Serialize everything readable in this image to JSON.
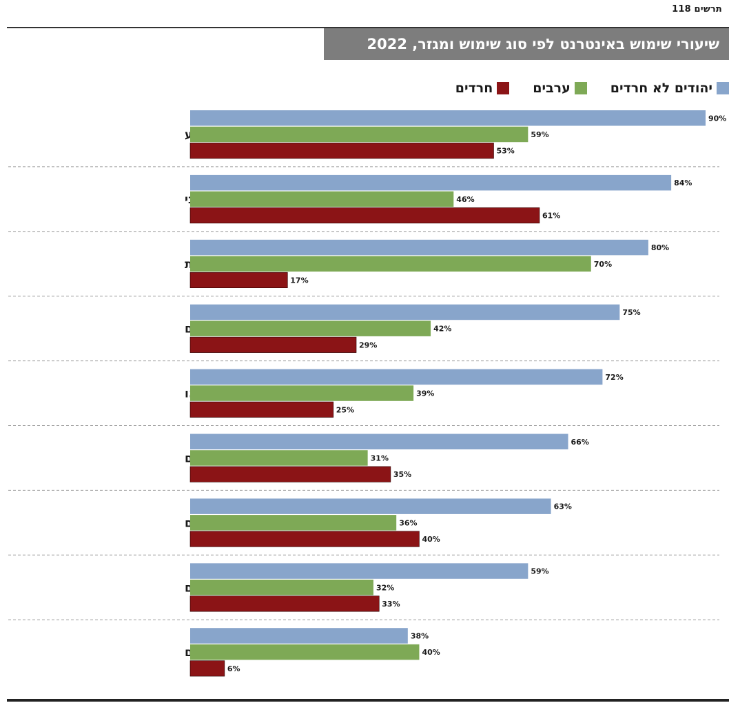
{
  "figure_label": "תרשים 118",
  "colors": {
    "non_haredi_jews": "#88a5cb",
    "arabs": "#7ea956",
    "haredim": "#8b1416"
  },
  "chart_data": {
    "type": "bar",
    "orientation": "horizontal",
    "title": "שיעורי שימוש באינטרנט לפי סוג שימוש ומגזר, 2022",
    "xlim": [
      0,
      90
    ],
    "grid": false,
    "legend_position": "top-right",
    "categories": [
      "חיפוש מידע",
      "דואר אלקטרוני",
      "קבוצות דיון ורשתות חברתיות",
      "צפייה בקבצים",
      "שיחות וידאו",
      "קניית מוצרים או שירותים",
      "קבלת שירותים ממשלתיים",
      "פעולות בנקאיות ותשלומים",
      "משחקים"
    ],
    "series": [
      {
        "name": "יהודים לא חרדים",
        "values": [
          90,
          84,
          80,
          75,
          72,
          66,
          63,
          59,
          38
        ]
      },
      {
        "name": "ערבים",
        "values": [
          59,
          46,
          70,
          42,
          39,
          31,
          36,
          32,
          40
        ]
      },
      {
        "name": "חרדים",
        "values": [
          53,
          61,
          17,
          29,
          25,
          35,
          40,
          33,
          6
        ]
      }
    ],
    "value_suffix": "%"
  }
}
